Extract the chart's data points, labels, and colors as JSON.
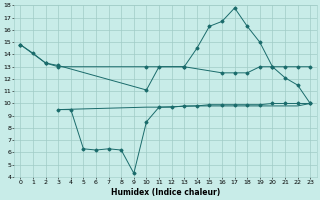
{
  "xlabel": "Humidex (Indice chaleur)",
  "bg_color": "#c8ece8",
  "grid_color": "#a0ccc6",
  "line_color": "#1a6b6b",
  "xlim": [
    -0.5,
    23.5
  ],
  "ylim": [
    4,
    18
  ],
  "xticks": [
    0,
    1,
    2,
    3,
    4,
    5,
    6,
    7,
    8,
    9,
    10,
    11,
    12,
    13,
    14,
    15,
    16,
    17,
    18,
    19,
    20,
    21,
    22,
    23
  ],
  "yticks": [
    4,
    5,
    6,
    7,
    8,
    9,
    10,
    11,
    12,
    13,
    14,
    15,
    16,
    17,
    18
  ],
  "line1_x": [
    0,
    1,
    2,
    3,
    10,
    11,
    13,
    14,
    15,
    16,
    17,
    18,
    19,
    20,
    21,
    22,
    23
  ],
  "line1_y": [
    14.8,
    14.1,
    13.3,
    13.1,
    11.1,
    13.0,
    13.0,
    14.5,
    16.3,
    16.7,
    17.8,
    16.3,
    15.0,
    13.0,
    12.1,
    11.5,
    10.0
  ],
  "line2_x": [
    0,
    2,
    3,
    10,
    13,
    16,
    17,
    18,
    19,
    20,
    21,
    22,
    23
  ],
  "line2_y": [
    14.8,
    13.3,
    13.0,
    13.0,
    13.0,
    12.5,
    12.5,
    12.5,
    13.0,
    13.0,
    13.0,
    13.0,
    13.0
  ],
  "line3_x": [
    3,
    4,
    5,
    6,
    7,
    8,
    9,
    10,
    11,
    12,
    13,
    14,
    15,
    16,
    17,
    18,
    19,
    20,
    21,
    22,
    23
  ],
  "line3_y": [
    9.5,
    9.5,
    6.3,
    6.2,
    6.3,
    6.2,
    4.3,
    8.5,
    9.7,
    9.7,
    9.8,
    9.8,
    9.9,
    9.9,
    9.9,
    9.9,
    9.9,
    10.0,
    10.0,
    10.0,
    10.0
  ],
  "line4_x": [
    3,
    10,
    11,
    14,
    15,
    16,
    17,
    18,
    19,
    20,
    21,
    22,
    23
  ],
  "line4_y": [
    9.5,
    9.7,
    9.7,
    9.8,
    9.8,
    9.8,
    9.8,
    9.8,
    9.8,
    9.8,
    9.8,
    9.8,
    10.0
  ]
}
